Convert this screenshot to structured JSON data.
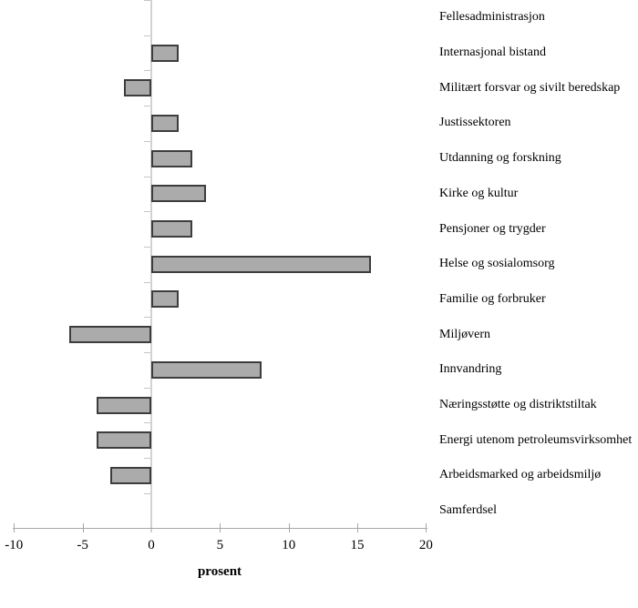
{
  "chart_data": {
    "type": "bar",
    "orientation": "horizontal",
    "title": "",
    "xlabel": "prosent",
    "ylabel": "",
    "categories": [
      "Fellesadministrasjon",
      "Internasjonal bistand",
      "Militært forsvar og sivilt beredskap",
      "Justissektoren",
      "Utdanning og forskning",
      "Kirke og kultur",
      "Pensjoner og trygder",
      "Helse og sosialomsorg",
      "Familie og forbruker",
      "Miljøvern",
      "Innvandring",
      "Næringsstøtte og distriktstiltak",
      "Energi utenom petroleumsvirksomhet",
      "Arbeidsmarked og arbeidsmiljø",
      "Samferdsel"
    ],
    "values": [
      0,
      2,
      -2,
      2,
      3,
      4,
      3,
      16,
      2,
      -6,
      8,
      -4,
      -4,
      -3,
      0
    ],
    "xlim": [
      -10,
      20
    ],
    "xticks": [
      "-10",
      "-5",
      "0",
      "5",
      "10",
      "15",
      "20"
    ],
    "xtick_values": [
      -10,
      -5,
      0,
      5,
      10,
      15,
      20
    ],
    "grid": false,
    "legend": "none",
    "colors": {
      "bar_fill": "#ababab",
      "bar_border": "#3d3d3d",
      "value_axis": "#a6a6a6",
      "category_axis": "#d2d2d2"
    }
  }
}
